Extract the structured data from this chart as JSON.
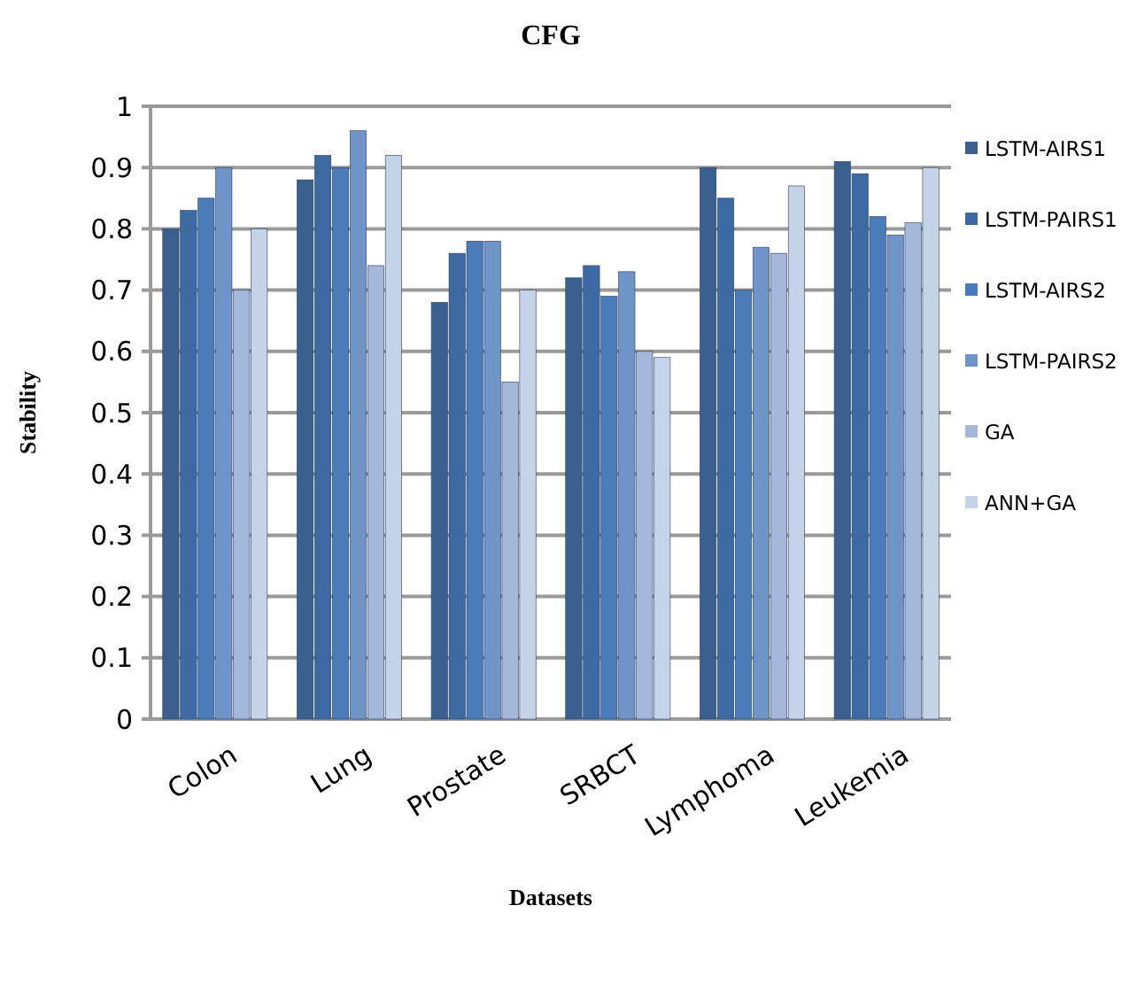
{
  "chart_data": {
    "type": "bar",
    "title": "CFG",
    "xlabel": "Datasets",
    "ylabel": "Stability",
    "categories": [
      "Colon",
      "Lung",
      "Prostate",
      "SRBCT",
      "Lymphoma",
      "Leukemia"
    ],
    "series": [
      {
        "name": "LSTM-AIRS1",
        "color": "#3a5f8f",
        "values": [
          0.8,
          0.88,
          0.68,
          0.72,
          0.9,
          0.91
        ]
      },
      {
        "name": "LSTM-PAIRS1",
        "color": "#3e6aa3",
        "values": [
          0.83,
          0.92,
          0.76,
          0.74,
          0.85,
          0.89
        ]
      },
      {
        "name": "LSTM-AIRS2",
        "color": "#4a7cba",
        "values": [
          0.85,
          0.9,
          0.78,
          0.69,
          0.7,
          0.82
        ]
      },
      {
        "name": "LSTM-PAIRS2",
        "color": "#6e94c8",
        "values": [
          0.9,
          0.96,
          0.78,
          0.73,
          0.77,
          0.79
        ]
      },
      {
        "name": "GA",
        "color": "#a3b8da",
        "values": [
          0.7,
          0.74,
          0.55,
          0.6,
          0.76,
          0.81
        ]
      },
      {
        "name": "ANN+GA",
        "color": "#c5d3e8",
        "values": [
          0.8,
          0.92,
          0.7,
          0.59,
          0.87,
          0.9
        ]
      }
    ],
    "ylim": [
      0,
      1
    ],
    "yticks": [
      0,
      0.1,
      0.2,
      0.3,
      0.4,
      0.5,
      0.6,
      0.7,
      0.8,
      0.9,
      1
    ],
    "grid": "y",
    "legend": "right"
  }
}
